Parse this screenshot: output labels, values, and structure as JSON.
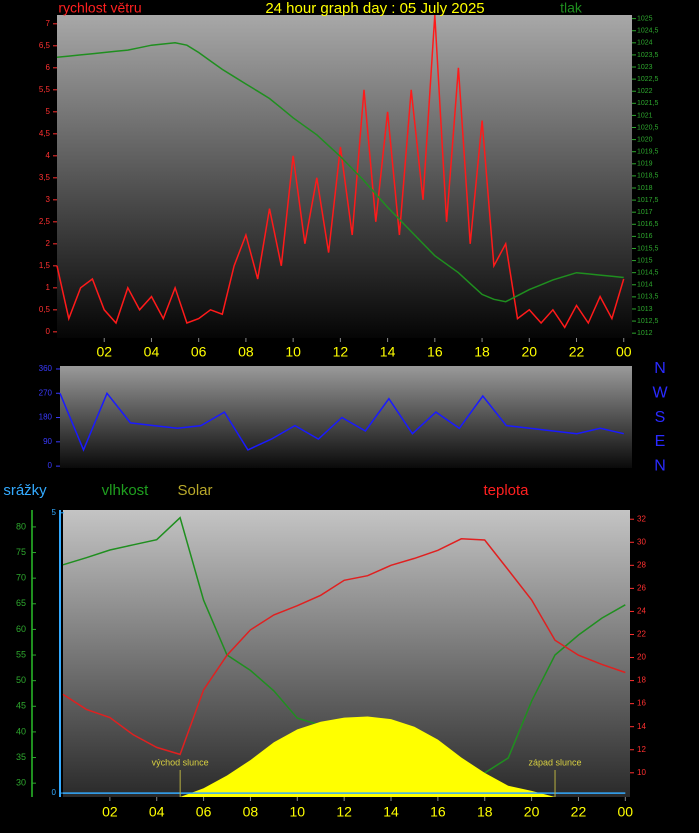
{
  "chart_data": [
    {
      "type": "line",
      "title": "24 hour graph day : 05 July 2025",
      "x": [
        0,
        0.5,
        1,
        1.5,
        2,
        2.5,
        3,
        3.5,
        4,
        4.5,
        5,
        5.5,
        6,
        6.5,
        7,
        7.5,
        8,
        8.5,
        9,
        9.5,
        10,
        10.5,
        11,
        11.5,
        12,
        12.5,
        13,
        13.5,
        14,
        14.5,
        15,
        15.5,
        16,
        16.5,
        17,
        17.5,
        18,
        18.5,
        19,
        19.5,
        20,
        20.5,
        21,
        21.5,
        22,
        22.5,
        23,
        23.5,
        24
      ],
      "xlim": [
        0,
        24.35
      ],
      "xticks": [
        {
          "value": 2,
          "label": "02"
        },
        {
          "value": 4,
          "label": "04"
        },
        {
          "value": 6,
          "label": "06"
        },
        {
          "value": 8,
          "label": "08"
        },
        10,
        12,
        14,
        16,
        18,
        20,
        22,
        {
          "value": 24,
          "label": "00"
        }
      ],
      "ylim": [
        -0.14,
        7.2
      ],
      "yticks": [
        0,
        {
          "value": 0.5,
          "label": "0,5"
        },
        1,
        {
          "value": 1.5,
          "label": "1,5"
        },
        2,
        {
          "value": 2.5,
          "label": "2,5"
        },
        3,
        {
          "value": 3.5,
          "label": "3,5"
        },
        4,
        {
          "value": 4.5,
          "label": "4,5"
        },
        5,
        {
          "value": 5.5,
          "label": "5,5"
        },
        6,
        {
          "value": 6.5,
          "label": "6,5"
        },
        7
      ],
      "y2lim": [
        1011.8,
        1025.15
      ],
      "y2ticks": [
        1012,
        {
          "value": 1012.5,
          "label": "1012,5"
        },
        1013,
        {
          "value": 1013.5,
          "label": "1013,5"
        },
        1014,
        {
          "value": 1014.5,
          "label": "1014,5"
        },
        1015,
        {
          "value": 1015.5,
          "label": "1015,5"
        },
        1016,
        {
          "value": 1016.5,
          "label": "1016,5"
        },
        1017,
        {
          "value": 1017.5,
          "label": "1017,5"
        },
        1018,
        {
          "value": 1018.5,
          "label": "1018,5"
        },
        1019,
        {
          "value": 1019.5,
          "label": "1019,5"
        },
        1020,
        {
          "value": 1020.5,
          "label": "1020,5"
        },
        1021,
        {
          "value": 1021.5,
          "label": "1021,5"
        },
        1022,
        {
          "value": 1022.5,
          "label": "1022,5"
        },
        1023,
        {
          "value": 1023.5,
          "label": "1023,5"
        },
        1024,
        {
          "value": 1024.5,
          "label": "1024,5"
        },
        1025
      ],
      "series": [
        {
          "name": "rychlost větru",
          "color": "#ff1a1a",
          "axis": "y",
          "values": [
            1.5,
            0.3,
            1,
            1.2,
            0.5,
            0.2,
            1,
            0.5,
            0.8,
            0.3,
            1,
            0.2,
            0.3,
            0.5,
            0.4,
            1.5,
            2.2,
            1.2,
            2.8,
            1.5,
            4,
            2,
            3.5,
            1.8,
            4.2,
            2.2,
            5.5,
            2.5,
            5,
            2.2,
            5.5,
            3,
            7.2,
            2.5,
            6,
            2,
            4.8,
            1.5,
            2,
            0.3,
            0.5,
            0.2,
            0.5,
            0.1,
            0.6,
            0.2,
            0.8,
            0.3,
            1.2
          ]
        },
        {
          "name": "tlak",
          "color": "#1f8f1f",
          "axis": "y2",
          "values": [
            1023.4,
            1023.45,
            1023.5,
            1023.55,
            1023.6,
            1023.65,
            1023.7,
            1023.8,
            1023.9,
            1023.95,
            1024,
            1023.9,
            1023.6,
            1023.25,
            1022.9,
            1022.6,
            1022.3,
            1022,
            1021.7,
            1021.3,
            1020.9,
            1020.55,
            1020.2,
            1019.75,
            1019.3,
            1018.8,
            1018.3,
            1017.75,
            1017.2,
            1016.7,
            1016.2,
            1015.7,
            1015.2,
            1014.85,
            1014.5,
            1014.05,
            1013.6,
            1013.4,
            1013.3,
            1013.55,
            1013.8,
            1014,
            1014.2,
            1014.35,
            1014.5,
            1014.45,
            1014.4,
            1014.35,
            1014.3
          ]
        }
      ]
    },
    {
      "type": "line",
      "x": [
        0,
        1,
        2,
        3,
        4,
        5,
        6,
        7,
        8,
        9,
        10,
        11,
        12,
        13,
        14,
        15,
        16,
        17,
        18,
        19,
        20,
        21,
        22,
        23,
        24
      ],
      "xlim": [
        0,
        24.35
      ],
      "ylim": [
        -7,
        371
      ],
      "yticks": [
        0,
        90,
        180,
        270,
        360
      ],
      "y2lim": [
        -7,
        371
      ],
      "y2ticks": [
        {
          "value": 360,
          "label": "N"
        },
        {
          "value": 270,
          "label": "W"
        },
        {
          "value": 180,
          "label": "S"
        },
        {
          "value": 90,
          "label": "E"
        },
        {
          "value": 0,
          "label": "N"
        }
      ],
      "series": [
        {
          "color": "#1a1aff",
          "axis": "y",
          "values": [
            270,
            60,
            270,
            160,
            150,
            140,
            150,
            200,
            60,
            100,
            150,
            100,
            180,
            130,
            250,
            120,
            200,
            140,
            260,
            150,
            140,
            130,
            120,
            140,
            120
          ]
        }
      ]
    },
    {
      "type": "line",
      "x": [
        0,
        1,
        2,
        3,
        4,
        5,
        6,
        7,
        8,
        9,
        10,
        11,
        12,
        13,
        14,
        15,
        16,
        17,
        18,
        19,
        20,
        21,
        22,
        23,
        24
      ],
      "xlim": [
        0,
        24.2
      ],
      "xticks": [
        {
          "value": 2,
          "label": "02"
        },
        {
          "value": 4,
          "label": "04"
        },
        {
          "value": 6,
          "label": "06"
        },
        {
          "value": 8,
          "label": "08"
        },
        10,
        12,
        14,
        16,
        18,
        20,
        22,
        {
          "value": 24,
          "label": "00"
        }
      ],
      "ylim": [
        27.3,
        83.3
      ],
      "yticks": [
        30,
        35,
        40,
        45,
        50,
        55,
        60,
        65,
        70,
        75,
        80
      ],
      "y2lim": [
        7.9,
        32.8
      ],
      "y2ticks": [
        10,
        12,
        14,
        16,
        18,
        20,
        22,
        24,
        26,
        28,
        30,
        32
      ],
      "y3lim": [
        -0.07,
        5.05
      ],
      "y3ticks": [
        0,
        5
      ],
      "series": [
        {
          "name": "vlhkost",
          "color": "#1f8f1f",
          "axis": "y",
          "values": [
            72.6,
            74,
            75.5,
            76.5,
            77.5,
            81.8,
            65.7,
            55,
            52,
            48,
            42.7,
            41.3,
            37.4,
            35.5,
            33.5,
            31.6,
            31,
            30.6,
            32,
            34.9,
            46,
            55,
            58.9,
            62.2,
            64.8
          ]
        },
        {
          "name": "Solar",
          "color": "#ffff00",
          "axis": "y",
          "style": "area",
          "values": [
            27.3,
            27.3,
            27.3,
            27.3,
            27.3,
            27.3,
            29,
            31.5,
            34.5,
            38,
            40.5,
            42,
            42.8,
            43,
            42.5,
            41,
            38.5,
            35,
            32,
            29.5,
            28.5,
            27.3,
            27.3,
            27.3,
            27.3
          ]
        },
        {
          "name": "teplota",
          "color": "#e02020",
          "axis": "y2",
          "values": [
            16.8,
            15.5,
            14.8,
            13.3,
            12.2,
            11.6,
            17.2,
            20.2,
            22.4,
            23.7,
            24.5,
            25.4,
            26.7,
            27.1,
            28,
            28.6,
            29.3,
            30.3,
            30.2,
            27.6,
            25,
            21.5,
            20.2,
            19.4,
            18.7
          ]
        },
        {
          "name": "srážky",
          "color": "#33aaff",
          "axis": "y3",
          "values": [
            0,
            0,
            0,
            0,
            0,
            0,
            0,
            0,
            0,
            0,
            0,
            0,
            0,
            0,
            0,
            0,
            0,
            0,
            0,
            0,
            0,
            0,
            0,
            0,
            0
          ]
        }
      ],
      "annotations": [
        {
          "text": "východ slunce",
          "x": 5.0
        },
        {
          "text": "západ slunce",
          "x": 21.0
        }
      ]
    }
  ]
}
